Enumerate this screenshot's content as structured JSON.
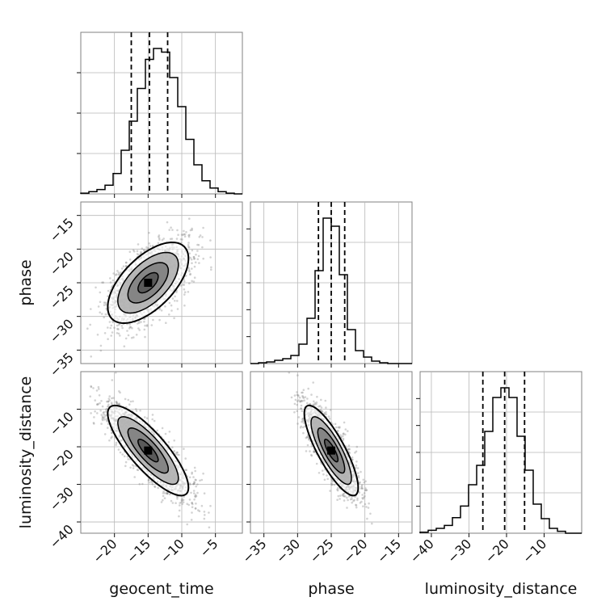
{
  "chart_data": {
    "type": "corner",
    "parameters": [
      "geocent_time",
      "phase",
      "luminosity_distance"
    ],
    "axis_labels": {
      "x": [
        "geocent_time",
        "phase",
        "luminosity_distance"
      ],
      "y": [
        "",
        "phase",
        "luminosity_distance"
      ]
    },
    "ranges": {
      "geocent_time": [
        -25,
        -1
      ],
      "phase": [
        -37,
        -13
      ],
      "luminosity_distance": [
        -43,
        0
      ]
    },
    "ticks": {
      "geocent_time": [
        -20,
        -15,
        -10,
        -5
      ],
      "phase": [
        -35,
        -30,
        -25,
        -20,
        -15
      ],
      "luminosity_distance": [
        -40,
        -30,
        -20,
        -10
      ]
    },
    "tick_labels": {
      "geocent_time": [
        "−20",
        "−15",
        "−10",
        "−5"
      ],
      "phase": [
        "−35",
        "−30",
        "−25",
        "−20",
        "−15"
      ],
      "luminosity_distance": [
        "−40",
        "−30",
        "−20",
        "−10"
      ]
    },
    "histograms": [
      {
        "parameter": "geocent_time",
        "bin_start": -25,
        "bin_width": 1.2,
        "counts": [
          1,
          3,
          6,
          12,
          28,
          60,
          100,
          145,
          185,
          200,
          195,
          160,
          120,
          75,
          40,
          18,
          8,
          3,
          1,
          0
        ],
        "quantiles": [
          -17.5,
          -14.8,
          -12.1
        ]
      },
      {
        "parameter": "phase",
        "bin_start": -37,
        "bin_width": 1.2,
        "counts": [
          0,
          1,
          2,
          4,
          6,
          10,
          24,
          56,
          115,
          180,
          170,
          110,
          42,
          16,
          8,
          3,
          1,
          0,
          0,
          0
        ],
        "quantiles": [
          -26.9,
          -25.0,
          -23.0
        ]
      },
      {
        "parameter": "luminosity_distance",
        "bin_start": -43,
        "bin_width": 2.15,
        "counts": [
          1,
          3,
          5,
          8,
          16,
          28,
          50,
          70,
          105,
          140,
          150,
          140,
          100,
          65,
          30,
          15,
          5,
          2,
          0,
          0
        ],
        "quantiles": [
          -26.3,
          -20.5,
          -15.2
        ]
      }
    ],
    "scatter_2d": [
      {
        "x_param": "geocent_time",
        "y_param": "phase",
        "mean": [
          -15,
          -25
        ],
        "std": [
          3.0,
          3.0
        ],
        "correlation": 0.6,
        "n_samples": 1800,
        "seed": 7
      },
      {
        "x_param": "geocent_time",
        "y_param": "luminosity_distance",
        "mean": [
          -15,
          -21
        ],
        "std": [
          3.0,
          6.0
        ],
        "correlation": -0.82,
        "n_samples": 1800,
        "seed": 11
      },
      {
        "x_param": "phase",
        "y_param": "luminosity_distance",
        "mean": [
          -25,
          -21
        ],
        "std": [
          2.0,
          6.0
        ],
        "correlation": -0.82,
        "n_samples": 1800,
        "seed": 23
      }
    ],
    "contour_levels_sigma": [
      0.5,
      1.0,
      1.5,
      2.0
    ],
    "grid": true,
    "colors": {
      "hist": "#000000",
      "points": "#808080",
      "contour": "#000000",
      "fill_dark": "#000000",
      "fill_mid": "#555555",
      "fill_light": "#b0b0b0"
    }
  }
}
